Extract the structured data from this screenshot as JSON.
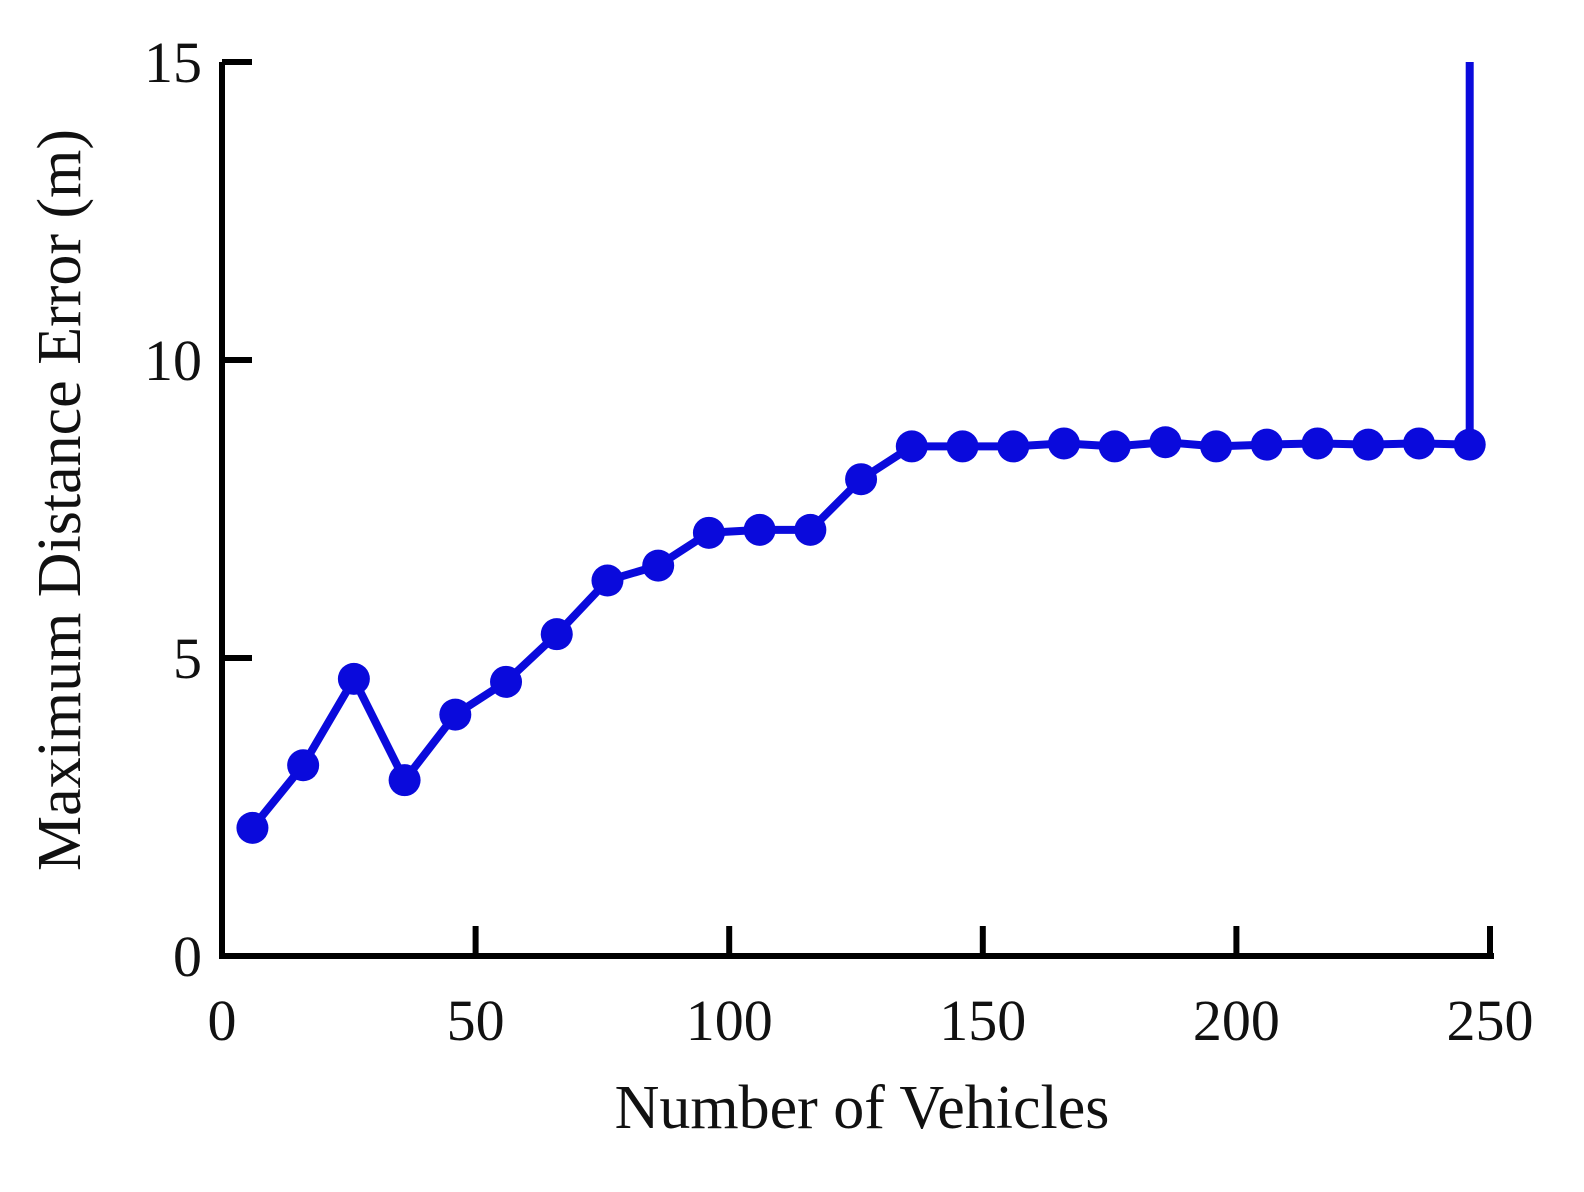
{
  "chart_data": {
    "type": "line",
    "title": "",
    "xlabel": "Number of Vehicles",
    "ylabel": "Maximum Distance Error (m)",
    "xlim": [
      0,
      250
    ],
    "ylim": [
      0,
      15
    ],
    "xticks": [
      0,
      50,
      100,
      150,
      200,
      250
    ],
    "yticks": [
      0,
      5,
      10,
      15
    ],
    "grid": false,
    "legend": "none",
    "series": [
      {
        "color": "#0a0adc",
        "marker": "circle",
        "x": [
          6,
          16,
          26,
          36,
          46,
          56,
          66,
          76,
          86,
          96,
          106,
          116,
          126,
          136,
          146,
          156,
          166,
          176,
          186,
          196,
          206,
          216,
          226,
          236,
          246,
          246
        ],
        "y": [
          2.15,
          3.2,
          4.65,
          2.95,
          4.05,
          4.6,
          5.4,
          6.3,
          6.55,
          7.1,
          7.15,
          7.15,
          8.0,
          8.55,
          8.55,
          8.55,
          8.6,
          8.55,
          8.62,
          8.55,
          8.58,
          8.6,
          8.58,
          8.6,
          8.58,
          15.0
        ],
        "marker_count": 25
      }
    ]
  }
}
